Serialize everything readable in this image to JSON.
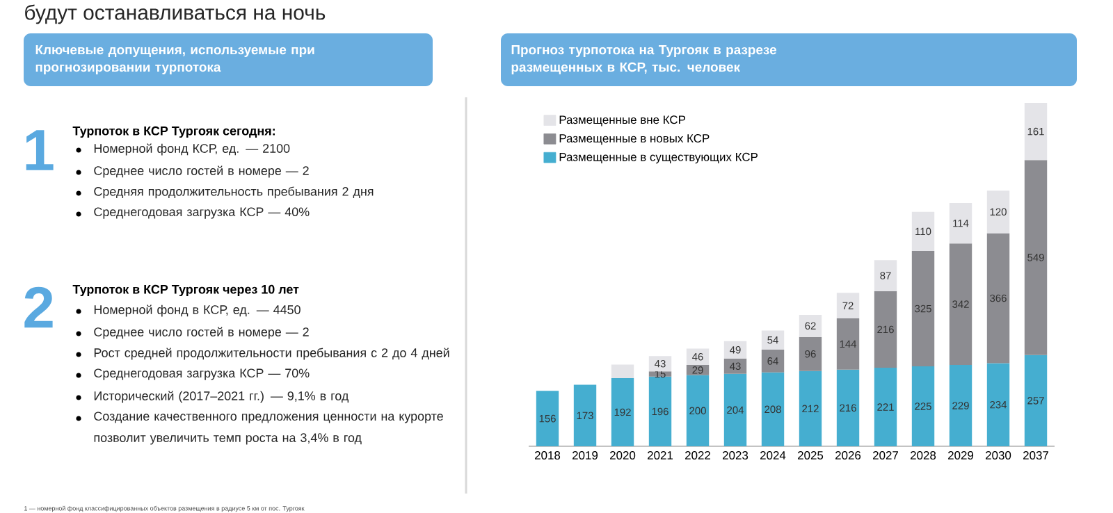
{
  "chart_data": [
    {
      "type": "other",
      "title": "будут останавливаться на ночь",
      "subtitle": "Ключевые допущения, используемые при прогнозировании турпотока",
      "annotations": [
        "1",
        "Турпоток в КСР Тургояк сегодня:",
        "Номерной фонд КСР, ед. — 2100",
        "Среднее число гостей в номере — 2",
        "Средняя продолжительность пребывания 2 дня",
        "Среднегодовая загрузка КСР — 40%",
        "2",
        "Турпоток в КСР Тургояк через 10 лет",
        "Номерной фонд в КСР, ед. — 4450",
        "Среднее число гостей в номере — 2",
        "Рост средней продолжительности пребывания с 2 до 4 дней",
        "Среднегодовая загрузка КСР — 70%",
        "Исторический (2017–2021 гг.) — 9,1% в год",
        "Создание качественного предложения ценности на курорте позволит увеличить темп роста на 3,4% в год",
        "1 — номерной фонд классифицированных объектов размещения в радиусе 5 км от пос. Тургояк"
      ]
    },
    {
      "type": "bar",
      "title": "Прогноз турпотока на Тургояк в разрезе размещенных в КСР, тыс. человек",
      "categories": [
        "2018",
        "2019",
        "2020",
        "2021",
        "2022",
        "2023",
        "2024",
        "2025",
        "2026",
        "2027",
        "2028",
        "2029",
        "2030",
        "2037"
      ],
      "stacked": true,
      "tick_labels": "x",
      "legend": "top left",
      "series": [
        {
          "name": "Размещенные в существующих КСР",
          "color": "#45aed0",
          "values": [
            156,
            173,
            192,
            196,
            200,
            204,
            208,
            212,
            216,
            221,
            225,
            229,
            234,
            257
          ],
          "value_labels": [
            "156",
            "173",
            "192",
            "196",
            "200",
            "204",
            "208",
            "212",
            "216",
            "221",
            "225",
            "229",
            "234",
            "257"
          ]
        },
        {
          "name": "Размещенные в новых КСР",
          "color": "#8c8c91",
          "values": [
            null,
            null,
            null,
            15,
            29,
            43,
            64,
            96,
            144,
            216,
            325,
            342,
            366,
            549
          ],
          "value_labels": [
            null,
            null,
            null,
            "15",
            "29",
            "43",
            "64",
            "96",
            "144",
            "216",
            "325",
            "342",
            "366",
            "549"
          ]
        },
        {
          "name": "Размещенные вне КСР",
          "color": "#e4e4e8",
          "values": [
            null,
            null,
            38,
            43,
            46,
            49,
            54,
            62,
            72,
            87,
            110,
            114,
            120,
            161
          ],
          "value_labels": [
            null,
            null,
            null,
            "43",
            "46",
            "49",
            "54",
            "62",
            "72",
            "87",
            "110",
            "114",
            "120",
            "161"
          ]
        }
      ]
    }
  ]
}
